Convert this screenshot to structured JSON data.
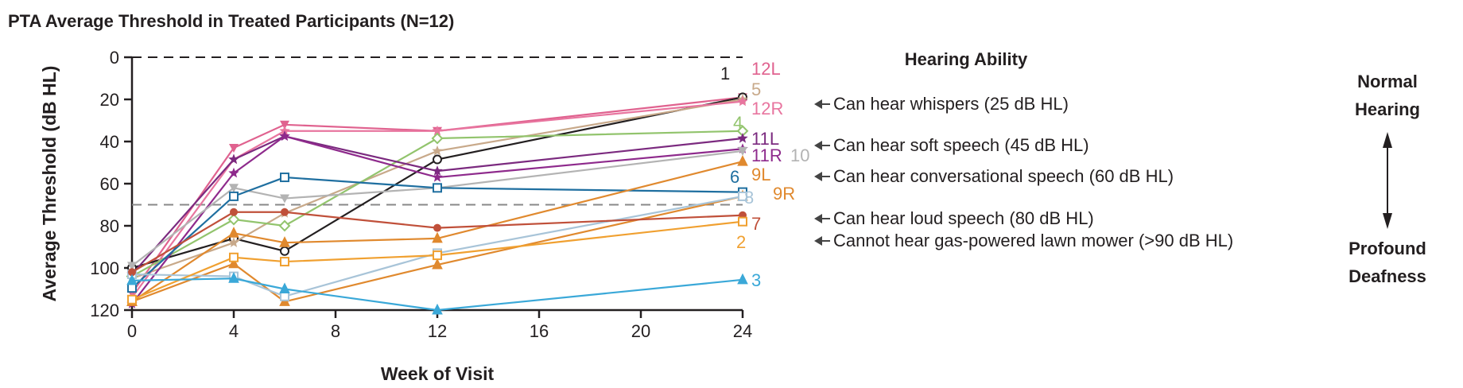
{
  "chart_data": {
    "type": "line",
    "title": "PTA Average Threshold in Treated Participants (N=12)",
    "xlabel": "Week of Visit",
    "ylabel": "Average Threshold (dB HL)",
    "xlim": [
      0,
      24
    ],
    "ylim": [
      0,
      120
    ],
    "y_inverted": true,
    "xticks": [
      0,
      4,
      8,
      12,
      16,
      20,
      24
    ],
    "yticks": [
      0,
      20,
      40,
      60,
      80,
      100,
      120
    ],
    "grid": false,
    "reference_lines": [
      {
        "y": 0,
        "style": "dashed",
        "color": "#231f20"
      },
      {
        "y": 70,
        "style": "dashed",
        "color": "#888888"
      }
    ],
    "series": [
      {
        "name": "12L",
        "color": "#e0628f",
        "marker": "down-triangle",
        "x": [
          0,
          4,
          6,
          12,
          24
        ],
        "y": [
          112,
          43,
          32,
          35,
          19
        ]
      },
      {
        "name": "1",
        "color": "#231f20",
        "marker": "circle",
        "x": [
          0,
          4,
          6,
          12,
          24
        ],
        "y": [
          100,
          86,
          92,
          48.5,
          19
        ]
      },
      {
        "name": "5",
        "color": "#c8a98a",
        "marker": "star",
        "x": [
          0,
          4,
          6,
          12,
          24
        ],
        "y": [
          105,
          88,
          74,
          44.5,
          20
        ]
      },
      {
        "name": "12R",
        "color": "#e8759f",
        "marker": "star",
        "x": [
          0,
          4,
          6,
          12,
          24
        ],
        "y": [
          114,
          48.5,
          35,
          35,
          21
        ]
      },
      {
        "name": "4",
        "color": "#92c46d",
        "marker": "diamond",
        "x": [
          0,
          4,
          6,
          12,
          24
        ],
        "y": [
          104,
          77,
          80,
          38.5,
          35
        ]
      },
      {
        "name": "11L",
        "color": "#7b2a7f",
        "marker": "star",
        "x": [
          0,
          4,
          6,
          12,
          24
        ],
        "y": [
          103,
          48.5,
          37.5,
          54,
          38.5
        ]
      },
      {
        "name": "11R",
        "color": "#8e2a8c",
        "marker": "star",
        "x": [
          0,
          4,
          6,
          12,
          24
        ],
        "y": [
          117,
          55,
          37.5,
          57,
          43.5
        ]
      },
      {
        "name": "10",
        "color": "#b3b3b3",
        "marker": "down-triangle",
        "x": [
          0,
          4,
          6,
          12,
          24
        ],
        "y": [
          99,
          62,
          67,
          62,
          44.5
        ]
      },
      {
        "name": "6",
        "color": "#1f6fa0",
        "marker": "square",
        "x": [
          0,
          4,
          6,
          12,
          24
        ],
        "y": [
          109.5,
          66,
          57,
          62,
          64
        ]
      },
      {
        "name": "9L",
        "color": "#e0892e",
        "marker": "triangle",
        "x": [
          0,
          4,
          6,
          12,
          24
        ],
        "y": [
          116,
          83.5,
          88,
          86,
          49.5
        ]
      },
      {
        "name": "9R",
        "color": "#e0892e",
        "marker": "triangle",
        "x": [
          0,
          4,
          6,
          12,
          24
        ],
        "y": [
          116,
          98,
          116,
          98.5,
          66
        ]
      },
      {
        "name": "8",
        "color": "#a8c4d8",
        "marker": "square",
        "x": [
          0,
          4,
          6,
          12,
          24
        ],
        "y": [
          103,
          104,
          113.5,
          93,
          66
        ]
      },
      {
        "name": "7",
        "color": "#c0503a",
        "marker": "circle-filled",
        "x": [
          0,
          4,
          6,
          12,
          24
        ],
        "y": [
          102,
          73.5,
          73.5,
          81,
          75
        ]
      },
      {
        "name": "2",
        "color": "#f0a030",
        "marker": "square",
        "x": [
          0,
          4,
          6,
          12,
          24
        ],
        "y": [
          115,
          95,
          97,
          94,
          78
        ]
      },
      {
        "name": "3",
        "color": "#3aa8d8",
        "marker": "triangle",
        "x": [
          0,
          4,
          6,
          12,
          24
        ],
        "y": [
          106,
          105,
          110,
          120,
          105.6
        ]
      }
    ]
  },
  "hearing_ability": {
    "heading": "Hearing Ability",
    "levels": [
      {
        "label": "Can hear whispers (25 dB HL)",
        "db": 25
      },
      {
        "label": "Can hear soft speech (45 dB HL)",
        "db": 45
      },
      {
        "label": "Can hear conversational speech (60 dB HL)",
        "db": 60
      },
      {
        "label": "Can hear loud speech (80 dB HL)",
        "db": 80
      },
      {
        "label": "Cannot hear gas-powered lawn mower (>90 dB HL)",
        "db": 90
      }
    ],
    "scale_top": [
      "Normal",
      "Hearing"
    ],
    "scale_bottom": [
      "Profound",
      "Deafness"
    ]
  }
}
